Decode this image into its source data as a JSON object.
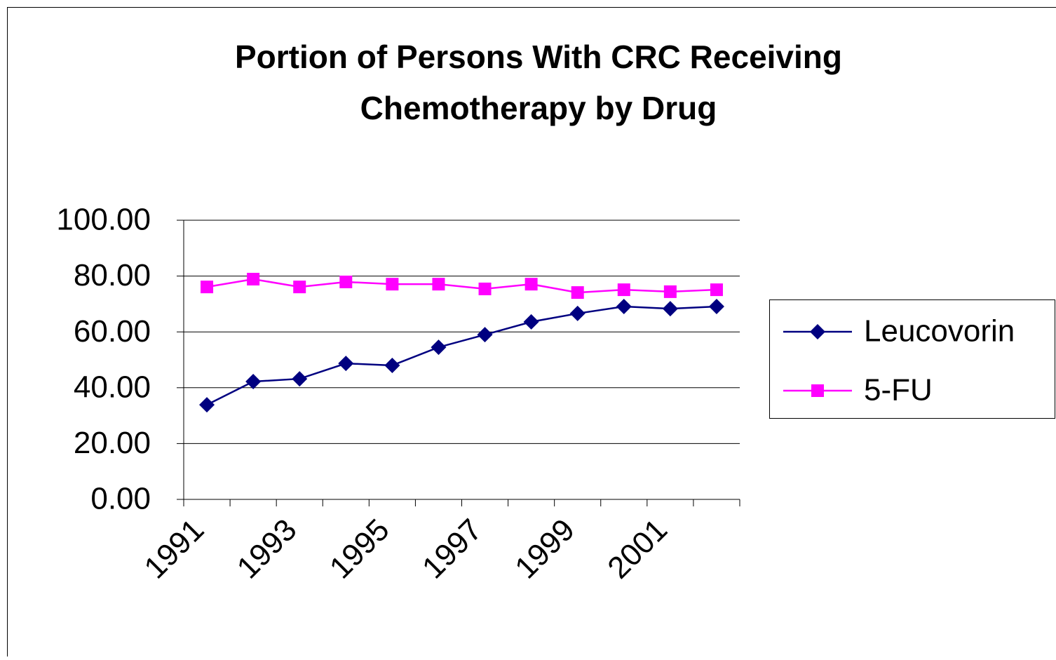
{
  "chart_data": {
    "type": "line",
    "title": "Portion of Persons With CRC Receiving Chemotherapy by Drug",
    "categories": [
      "1991",
      null,
      "1993",
      null,
      "1995",
      null,
      "1997",
      null,
      "1999",
      null,
      "2001",
      null
    ],
    "series": [
      {
        "name": "Leucovorin",
        "color": "#000080",
        "marker": "diamond",
        "values": [
          33.9,
          42.2,
          43.2,
          48.7,
          48.0,
          54.5,
          59.0,
          63.6,
          66.6,
          69.1,
          68.3,
          69.1
        ]
      },
      {
        "name": "5-FU",
        "color": "#ff00ff",
        "marker": "square",
        "values": [
          76.1,
          78.9,
          76.1,
          77.9,
          77.1,
          77.1,
          75.4,
          77.1,
          74.1,
          75.1,
          74.4,
          75.1
        ]
      }
    ],
    "ylim": [
      0,
      100
    ],
    "yticks": [
      {
        "value": 0,
        "label": "0.00"
      },
      {
        "value": 20,
        "label": "20.00"
      },
      {
        "value": 40,
        "label": "40.00"
      },
      {
        "value": 60,
        "label": "60.00"
      },
      {
        "value": 80,
        "label": "80.00"
      },
      {
        "value": 100,
        "label": "100.00"
      }
    ],
    "grid": true,
    "legend": "right"
  }
}
